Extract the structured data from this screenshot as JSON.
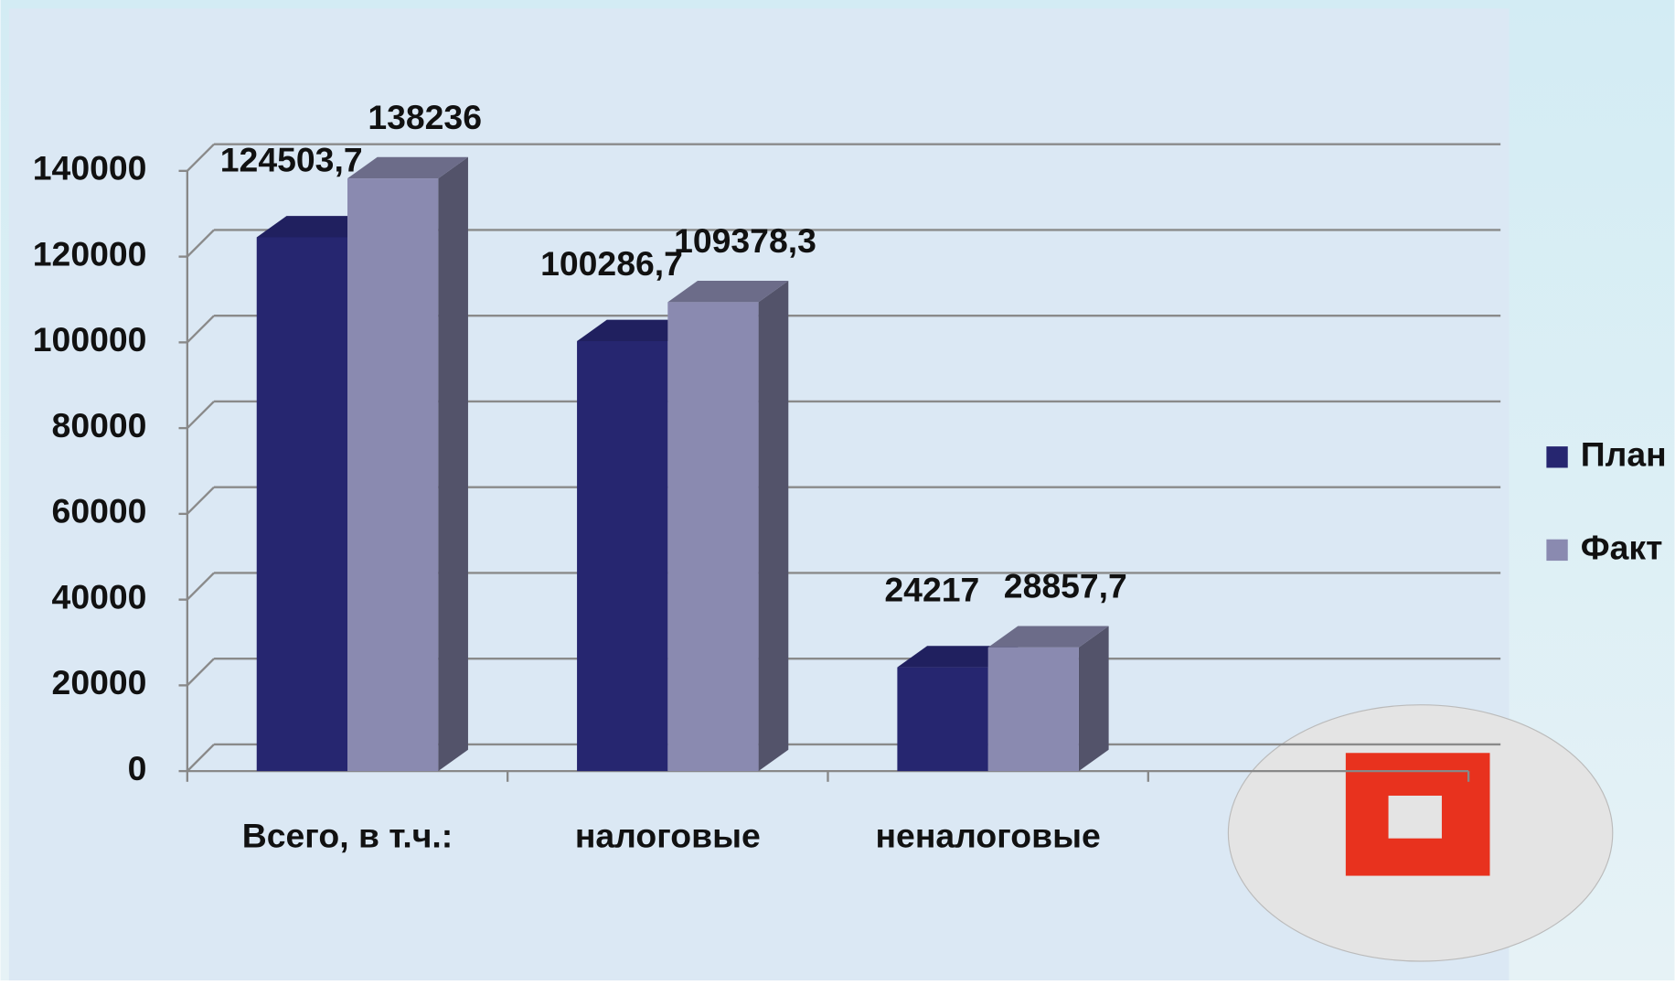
{
  "chart_data": {
    "type": "bar",
    "categories": [
      "Всего, в т.ч.:",
      "налоговые",
      "неналоговые"
    ],
    "series": [
      {
        "name": "План",
        "color": "#262670",
        "values": [
          124503.7,
          100286.7,
          24217
        ],
        "value_labels": [
          "124503,7",
          "100286,7",
          "24217"
        ]
      },
      {
        "name": "Факт",
        "color": "#8a8ab0",
        "values": [
          138236,
          109378.3,
          28857.7
        ],
        "value_labels": [
          "138236",
          "109378,3",
          "28857,7"
        ]
      }
    ],
    "ylim": [
      0,
      140000
    ],
    "yticks": [
      0,
      20000,
      40000,
      60000,
      80000,
      100000,
      120000,
      140000
    ],
    "grid": true,
    "legend": "right"
  }
}
